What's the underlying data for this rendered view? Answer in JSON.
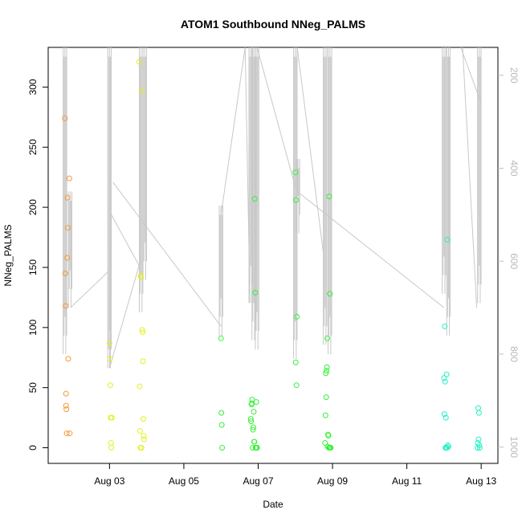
{
  "chart_data": {
    "type": "scatter",
    "title": "ATOM1 Southbound NNeg_PALMS",
    "xlabel": "Date",
    "ylabel": "NNeg_PALMS",
    "x_ticks": [
      "Aug 03",
      "Aug 05",
      "Aug 07",
      "Aug 09",
      "Aug 11",
      "Aug 13"
    ],
    "x_tick_values": [
      3,
      5,
      7,
      9,
      11,
      13
    ],
    "xlim": [
      1.35,
      13.45
    ],
    "ylim": [
      -13,
      333
    ],
    "y_ticks": [
      0,
      50,
      100,
      150,
      200,
      250,
      300
    ],
    "secondary_y": {
      "label": "",
      "ticks": [
        200,
        400,
        600,
        800,
        1000
      ],
      "range_top_to_bottom": [
        140,
        1035
      ],
      "color": "#bfbfbf",
      "description": "pressure track overlay (reversed axis)"
    },
    "grid": false,
    "legend": "none",
    "marker": "open-circle",
    "color_scale": [
      "#f29a35",
      "#e2f01e",
      "#38f038",
      "#25f0c4"
    ],
    "series": [
      {
        "color": "#f29a35",
        "x": [
          1.8,
          1.81,
          1.82,
          1.83,
          1.83,
          1.84,
          1.85,
          1.86,
          1.87,
          1.88,
          1.89,
          1.92,
          1.93
        ],
        "y": [
          274,
          145,
          118,
          45,
          35,
          32,
          12,
          158,
          208,
          183,
          74,
          224,
          12
        ]
      },
      {
        "color": "#e2f01e",
        "x": [
          3.0,
          3.01,
          3.02,
          3.03,
          3.04,
          3.05,
          3.06,
          3.8,
          3.81,
          3.82,
          3.83,
          3.84,
          3.85,
          3.86,
          3.87,
          3.88,
          3.89,
          3.9,
          3.91,
          3.92,
          3.93
        ],
        "y": [
          87,
          74,
          52,
          25,
          4,
          0,
          25,
          321,
          51,
          14,
          0,
          143,
          142,
          0,
          297,
          98,
          96,
          72,
          24,
          10,
          7
        ]
      },
      {
        "color": "#38f038",
        "x": [
          6.0,
          6.01,
          6.02,
          6.03,
          6.8,
          6.81,
          6.82,
          6.83,
          6.84,
          6.85,
          6.86,
          6.87,
          6.88,
          6.89,
          6.9,
          6.91,
          6.92,
          6.93,
          6.94,
          6.95,
          6.96,
          6.97,
          8.0,
          8.01,
          8.02,
          8.03,
          8.04,
          8.8,
          8.81,
          8.82,
          8.83,
          8.84,
          8.85,
          8.86,
          8.87,
          8.88,
          8.89,
          8.9,
          8.91,
          8.92,
          8.93,
          8.94,
          8.95
        ],
        "y": [
          91,
          29,
          19,
          0,
          24,
          22,
          36,
          37,
          40,
          0,
          15,
          17,
          30,
          5,
          5,
          207,
          129,
          0,
          0,
          38,
          0,
          0,
          229,
          71,
          206,
          52,
          109,
          4,
          27,
          62,
          42,
          64,
          67,
          91,
          1,
          11,
          10,
          0,
          209,
          0,
          128,
          0,
          0
        ]
      },
      {
        "color": "#25f0c4",
        "x": [
          12.0,
          12.01,
          12.02,
          12.03,
          12.04,
          12.05,
          12.06,
          12.07,
          12.08,
          12.09,
          12.1,
          12.12,
          12.9,
          12.91,
          12.92,
          12.93,
          12.94,
          12.95,
          12.96
        ],
        "y": [
          58,
          28,
          101,
          55,
          0,
          25,
          0,
          61,
          0,
          173,
          2,
          1,
          0,
          4,
          33,
          7,
          29,
          2,
          0
        ]
      }
    ]
  },
  "track": {
    "color": "#c8c8c8",
    "segments": [
      {
        "kind": "band",
        "x": 1.8,
        "top": 140,
        "bottom": 800
      },
      {
        "kind": "band",
        "x": 1.94,
        "top": 450,
        "bottom": 700
      },
      {
        "kind": "diag",
        "x1": 1.95,
        "p1": 700,
        "x2": 3.0,
        "p2": 620
      },
      {
        "kind": "band",
        "x": 3.0,
        "top": 140,
        "bottom": 830
      },
      {
        "kind": "diag",
        "x1": 3.0,
        "p1": 830,
        "x2": 3.05,
        "p2": 500
      },
      {
        "kind": "diag",
        "x1": 3.05,
        "p1": 500,
        "x2": 3.8,
        "p2": 610
      },
      {
        "kind": "diag",
        "x1": 3.0,
        "p1": 830,
        "x2": 3.83,
        "p2": 600
      },
      {
        "kind": "band",
        "x": 3.85,
        "top": 140,
        "bottom": 710
      },
      {
        "kind": "band",
        "x": 3.95,
        "top": 140,
        "bottom": 640
      },
      {
        "kind": "diag",
        "x1": 3.09,
        "p1": 430,
        "x2": 6.0,
        "p2": 740
      },
      {
        "kind": "band",
        "x": 6.0,
        "top": 480,
        "bottom": 760
      },
      {
        "kind": "diag",
        "x1": 6.0,
        "p1": 500,
        "x2": 6.65,
        "p2": 140
      },
      {
        "kind": "diag",
        "x1": 6.65,
        "p1": 140,
        "x2": 6.78,
        "p2": 690
      },
      {
        "kind": "band",
        "x": 6.8,
        "top": 140,
        "bottom": 690
      },
      {
        "kind": "band",
        "x": 6.88,
        "top": 140,
        "bottom": 770
      },
      {
        "kind": "band",
        "x": 6.97,
        "top": 140,
        "bottom": 790
      },
      {
        "kind": "diag",
        "x1": 6.97,
        "p1": 140,
        "x2": 8.0,
        "p2": 440
      },
      {
        "kind": "band",
        "x": 8.0,
        "top": 140,
        "bottom": 810
      },
      {
        "kind": "band",
        "x": 8.07,
        "top": 380,
        "bottom": 540
      },
      {
        "kind": "diag",
        "x1": 8.05,
        "p1": 140,
        "x2": 8.75,
        "p2": 580
      },
      {
        "kind": "band",
        "x": 8.8,
        "top": 140,
        "bottom": 780
      },
      {
        "kind": "band",
        "x": 8.93,
        "top": 140,
        "bottom": 800
      },
      {
        "kind": "diag",
        "x1": 8.05,
        "p1": 450,
        "x2": 12.0,
        "p2": 700
      },
      {
        "kind": "band",
        "x": 12.0,
        "top": 140,
        "bottom": 670
      },
      {
        "kind": "band",
        "x": 12.12,
        "top": 140,
        "bottom": 760
      },
      {
        "kind": "diag",
        "x1": 12.5,
        "p1": 140,
        "x2": 12.88,
        "p2": 700
      },
      {
        "kind": "band",
        "x": 12.95,
        "top": 140,
        "bottom": 690
      },
      {
        "kind": "diag",
        "x1": 12.45,
        "p1": 140,
        "x2": 13.0,
        "p2": 260
      }
    ]
  }
}
